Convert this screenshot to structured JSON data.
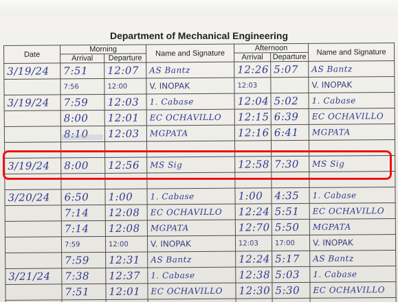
{
  "title": "Department of Mechanical Engineering",
  "headers": {
    "date": "Date",
    "morning": "Morning",
    "afternoon": "Afternoon",
    "arrival": "Arrival",
    "departure": "Departure",
    "name_signature": "Name and Signature"
  },
  "rows": [
    {
      "date": "3/19/24",
      "m_arr": "7:51",
      "m_dep": "12:07",
      "m_sig": "AS Bantz",
      "a_arr": "12:26",
      "a_dep": "5:07",
      "a_sig": "AS Bantz"
    },
    {
      "date": "",
      "m_arr": "7:56",
      "m_dep": "12:00",
      "m_sig": "V. INOPAK",
      "a_arr": "12:03",
      "a_dep": "",
      "a_sig": "V. INOPAK"
    },
    {
      "date": "3/19/24",
      "m_arr": "7:59",
      "m_dep": "12:03",
      "m_sig": "1. Cabase",
      "a_arr": "12:04",
      "a_dep": "5:02",
      "a_sig": "1. Cabase"
    },
    {
      "date": "",
      "m_arr": "8:00",
      "m_dep": "12:01",
      "m_sig": "EC OCHAVILLO",
      "a_arr": "12:15",
      "a_dep": "6:39",
      "a_sig": "EC OCHAVILLO"
    },
    {
      "date": "",
      "m_arr": "8:10",
      "m_dep": "12:03",
      "m_sig": "MGPATA",
      "a_arr": "12:16",
      "a_dep": "6:41",
      "a_sig": "MGPATA"
    },
    {
      "date": "",
      "m_arr": "",
      "m_dep": "",
      "m_sig": "",
      "a_arr": "",
      "a_dep": "",
      "a_sig": ""
    },
    {
      "date": "3/19/24",
      "m_arr": "8:00",
      "m_dep": "12:56",
      "m_sig": "MS Sig",
      "a_arr": "12:58",
      "a_dep": "7:30",
      "a_sig": "MS Sig"
    },
    {
      "date": "",
      "m_arr": "",
      "m_dep": "",
      "m_sig": "",
      "a_arr": "",
      "a_dep": "",
      "a_sig": ""
    },
    {
      "date": "3/20/24",
      "m_arr": "6:50",
      "m_dep": "1:00",
      "m_sig": "1. Cabase",
      "a_arr": "1:00",
      "a_dep": "4:35",
      "a_sig": "1. Cabase"
    },
    {
      "date": "",
      "m_arr": "7:14",
      "m_dep": "12:08",
      "m_sig": "EC OCHAVILLO",
      "a_arr": "12:24",
      "a_dep": "5:51",
      "a_sig": "EC OCHAVILLO"
    },
    {
      "date": "",
      "m_arr": "7:14",
      "m_dep": "12:08",
      "m_sig": "MGPATA",
      "a_arr": "12:70",
      "a_dep": "5:50",
      "a_sig": "MGPATA"
    },
    {
      "date": "",
      "m_arr": "7:59",
      "m_dep": "12:00",
      "m_sig": "V. INOPAK",
      "a_arr": "12:03",
      "a_dep": "17:00",
      "a_sig": "V. INOPAK"
    },
    {
      "date": "",
      "m_arr": "7:59",
      "m_dep": "12:31",
      "m_sig": "AS Bantz",
      "a_arr": "12:24",
      "a_dep": "5:17",
      "a_sig": "AS Bantz"
    },
    {
      "date": "3/21/24",
      "m_arr": "7:38",
      "m_dep": "12:37",
      "m_sig": "1. Cabase",
      "a_arr": "12:38",
      "a_dep": "5:03",
      "a_sig": "1. Cabase"
    },
    {
      "date": "",
      "m_arr": "7:51",
      "m_dep": "12:01",
      "m_sig": "EC OCHAVILLO",
      "a_arr": "12:30",
      "a_dep": "5:30",
      "a_sig": "EC OCHAVILLO"
    },
    {
      "date": "",
      "m_arr": "",
      "m_dep": "",
      "m_sig": "",
      "a_arr": "",
      "a_dep": "",
      "a_sig": ""
    }
  ],
  "small_rows": [
    1,
    11
  ],
  "ink_color": "#2f3a8f",
  "highlight_color": "#ee1111"
}
